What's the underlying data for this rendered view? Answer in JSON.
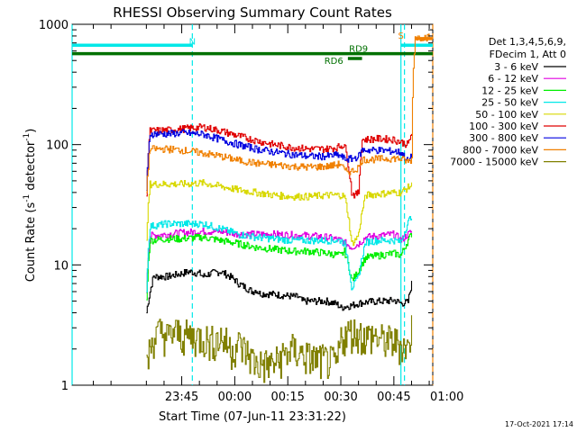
{
  "chart_data": {
    "type": "line",
    "title": "RHESSI Observing Summary Count Rates",
    "xlabel": "Start Time (07-Jun-11 23:31:22)",
    "ylabel_main": "Count Rate (s",
    "ylabel_sup1": "-1",
    "ylabel_mid": " detector",
    "ylabel_sup2": "-1",
    "ylabel_end": ")",
    "yscale": "log",
    "ylim": [
      1,
      1000
    ],
    "xlim_minutes": [
      -17,
      85
    ],
    "x_ticks": [
      {
        "label": "23:45",
        "min": 14
      },
      {
        "label": "00:00",
        "min": 29
      },
      {
        "label": "00:15",
        "min": 44
      },
      {
        "label": "00:30",
        "min": 59
      },
      {
        "label": "00:45",
        "min": 74
      },
      {
        "label": "01:00",
        "min": 89
      }
    ],
    "y_ticks": [
      {
        "label": "1",
        "v": 1
      },
      {
        "label": "10",
        "v": 10
      },
      {
        "label": "100",
        "v": 100
      },
      {
        "label": "1000",
        "v": 1000
      }
    ],
    "legend": {
      "header1": "Det 1,3,4,5,6,9,",
      "header2": "FDecim 1, Att 0",
      "position": "right"
    },
    "series": [
      {
        "name": "3 - 6 keV",
        "color": "#000000",
        "x": [
          4,
          6,
          10,
          14,
          16,
          19,
          20,
          22,
          25,
          27,
          29,
          30,
          32,
          34,
          35,
          36,
          40,
          47,
          48,
          55,
          58,
          59,
          60,
          62,
          64,
          66,
          70,
          72,
          74,
          76,
          78,
          79
        ],
        "y": [
          4,
          8,
          8,
          8.5,
          8.8,
          8.5,
          8,
          8.5,
          8.8,
          8.2,
          7.5,
          7,
          6.5,
          6,
          6.2,
          5.8,
          5.7,
          5.4,
          5,
          5,
          4.7,
          4.4,
          4.5,
          4.6,
          4.8,
          4.9,
          5,
          5,
          5.1,
          4.8,
          4.9,
          7
        ]
      },
      {
        "name": "6 - 12 keV",
        "color": "#e000e0",
        "x": [
          4,
          5,
          10,
          14,
          20,
          25,
          30,
          40,
          50,
          55,
          59,
          62,
          64,
          66,
          70,
          74,
          76,
          79
        ],
        "y": [
          6,
          17.5,
          18,
          18.5,
          19,
          19,
          18,
          18,
          17.5,
          17,
          16,
          14,
          15,
          17,
          17.5,
          18,
          16,
          19
        ]
      },
      {
        "name": "12 - 25 keV",
        "color": "#00ee00",
        "x": [
          4,
          5,
          10,
          14,
          20,
          25,
          30,
          35,
          40,
          45,
          50,
          55,
          59,
          60,
          62,
          63,
          64,
          66,
          70,
          74,
          76,
          79
        ],
        "y": [
          5,
          16,
          16.5,
          16.5,
          17,
          16,
          15,
          14,
          13.5,
          13,
          13,
          12.5,
          12,
          13,
          7.5,
          8,
          9,
          11.5,
          12,
          12.5,
          12,
          18
        ]
      },
      {
        "name": "25 - 50 keV",
        "color": "#00e8e8",
        "x": [
          4,
          5,
          10,
          14,
          20,
          25,
          30,
          35,
          40,
          45,
          50,
          55,
          59,
          60,
          62,
          63,
          64,
          66,
          70,
          74,
          76,
          79
        ],
        "y": [
          6,
          21,
          22,
          22,
          22,
          20,
          18,
          17,
          16.5,
          16,
          16,
          16,
          16,
          15,
          6.5,
          7,
          8,
          15.5,
          16,
          16,
          15.5,
          26
        ]
      },
      {
        "name": "50 - 100 keV",
        "color": "#d8d800",
        "x": [
          4,
          5,
          10,
          14,
          20,
          25,
          30,
          35,
          40,
          45,
          50,
          55,
          59,
          60,
          62,
          63,
          64,
          66,
          70,
          74,
          76,
          79
        ],
        "y": [
          15,
          47,
          47,
          47,
          48,
          45,
          42,
          40,
          38,
          37,
          37,
          38,
          38,
          37,
          15,
          16,
          18,
          38,
          39,
          40,
          40,
          46
        ]
      },
      {
        "name": "100 - 300 keV",
        "color": "#e00000",
        "x": [
          4,
          5,
          10,
          14,
          20,
          25,
          30,
          35,
          40,
          45,
          50,
          55,
          58,
          59,
          60,
          62,
          63,
          64,
          65,
          70,
          74,
          76,
          78,
          79
        ],
        "y": [
          40,
          130,
          132,
          135,
          140,
          130,
          118,
          108,
          100,
          95,
          92,
          92,
          95,
          98,
          100,
          40,
          38,
          40,
          110,
          112,
          110,
          105,
          100,
          125
        ]
      },
      {
        "name": "300 - 800 keV",
        "color": "#0000e0",
        "x": [
          4,
          5,
          10,
          14,
          20,
          25,
          30,
          35,
          40,
          45,
          50,
          55,
          58,
          59,
          60,
          62,
          63,
          64,
          65,
          70,
          74,
          76,
          78,
          79
        ],
        "y": [
          40,
          123,
          123,
          125,
          122,
          110,
          100,
          92,
          87,
          83,
          80,
          80,
          82,
          80,
          76,
          76,
          78,
          80,
          90,
          90,
          88,
          86,
          72,
          80
        ]
      },
      {
        "name": "800 - 7000 keV",
        "color": "#f08000",
        "x": [
          4,
          5,
          10,
          14,
          20,
          25,
          30,
          35,
          40,
          45,
          50,
          55,
          58,
          59,
          60,
          62,
          63,
          64,
          65,
          70,
          74,
          76,
          78,
          79,
          80,
          84
        ],
        "y": [
          40,
          92,
          92,
          90,
          85,
          80,
          74,
          70,
          68,
          66,
          65,
          66,
          68,
          70,
          60,
          60,
          62,
          65,
          75,
          76,
          77,
          76,
          72,
          75,
          780,
          780
        ]
      },
      {
        "name": "7000 - 15000 keV",
        "color": "#808000",
        "x": [
          4,
          5,
          6,
          8,
          10,
          12,
          14,
          20,
          22,
          24,
          25,
          28,
          30,
          35,
          40,
          45,
          50,
          55,
          58,
          59,
          60,
          62,
          64,
          66,
          68,
          70,
          74,
          76,
          78,
          79
        ],
        "y": [
          1.5,
          2,
          2.5,
          2.8,
          2.5,
          2.8,
          2.6,
          2.5,
          2.3,
          2.4,
          2.5,
          2.0,
          2.2,
          1.5,
          1.5,
          2,
          1.7,
          1.6,
          1.5,
          2.5,
          2.6,
          2.8,
          2.7,
          2.5,
          2.6,
          2.4,
          2.3,
          2.2,
          2,
          3
        ]
      }
    ],
    "annotations": [
      {
        "label": "N",
        "color": "#00e8e8",
        "min": 17,
        "v": 680
      },
      {
        "label": "S",
        "color": "#f08000",
        "min": 76,
        "v": 760
      },
      {
        "label": "RD9",
        "color": "#007000",
        "min": 64,
        "v": 590
      },
      {
        "label": "RD6",
        "color": "#007000",
        "min": 57,
        "v": 470
      }
    ],
    "overlays": [
      {
        "name": "saa-bar",
        "color": "#007000",
        "x": [
          -17,
          85
        ],
        "v": 570
      },
      {
        "name": "night-bar-1",
        "color": "#00e8e8",
        "x": [
          -17,
          17
        ],
        "v": 670
      },
      {
        "name": "night-bar-2",
        "color": "#00e8e8",
        "x": [
          76,
          85
        ],
        "v": 670
      },
      {
        "name": "flare-bar",
        "color": "#f08000",
        "x": [
          80,
          85
        ],
        "v": 760
      },
      {
        "name": "rd6-bar",
        "color": "#007000",
        "x": [
          61,
          65
        ],
        "v": 520
      }
    ],
    "vlines": [
      {
        "color": "#00e8e8",
        "min": -17,
        "style": "solid"
      },
      {
        "color": "#00e8e8",
        "min": 17,
        "style": "dashed"
      },
      {
        "color": "#00e8e8",
        "min": 76,
        "style": "solid"
      },
      {
        "color": "#00e8e8",
        "min": 77,
        "style": "dashed"
      },
      {
        "color": "#f08000",
        "min": 85,
        "style": "dashed"
      }
    ]
  },
  "footer": {
    "timestamp": "17-Oct-2021 17:14"
  }
}
